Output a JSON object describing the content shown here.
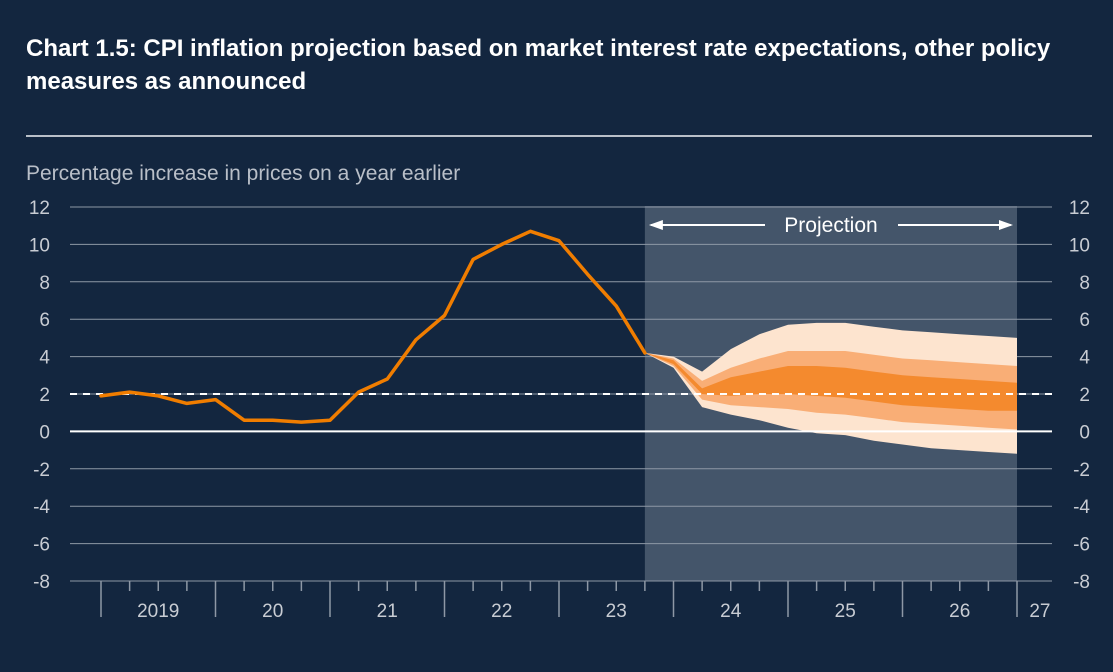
{
  "title": "Chart 1.5: CPI inflation projection based on market interest rate expectations, other policy measures as announced",
  "chart_data": {
    "type": "line",
    "title": "Chart 1.5: CPI inflation projection based on market interest rate expectations, other policy measures as announced",
    "ylabel": "Percentage increase in prices on a year earlier",
    "ylim": [
      -8,
      12
    ],
    "yticks": [
      12,
      10,
      8,
      6,
      4,
      2,
      0,
      -2,
      -4,
      -6,
      -8
    ],
    "ytick_labels": [
      "12",
      "10",
      "8",
      "6",
      "4",
      "2",
      "0",
      "-2",
      "-4",
      "-6",
      "-8"
    ],
    "xlim": [
      2019.0,
      2027.0
    ],
    "x_labels": [
      {
        "label": "2019",
        "x": 2019.5
      },
      {
        "label": "20",
        "x": 2020.5
      },
      {
        "label": "21",
        "x": 2021.5
      },
      {
        "label": "22",
        "x": 2022.5
      },
      {
        "label": "23",
        "x": 2023.5
      },
      {
        "label": "24",
        "x": 2024.5
      },
      {
        "label": "25",
        "x": 2025.5
      },
      {
        "label": "26",
        "x": 2026.5
      },
      {
        "label": "27",
        "x": 2027.2
      }
    ],
    "grid": true,
    "target_line": 2,
    "projection": {
      "label": "Projection",
      "start": 2023.75,
      "end": 2027.0
    },
    "series": [
      {
        "type": "line",
        "color": "#f07d00",
        "x": [
          2019.0,
          2019.25,
          2019.5,
          2019.75,
          2020.0,
          2020.25,
          2020.5,
          2020.75,
          2021.0,
          2021.25,
          2021.5,
          2021.75,
          2022.0,
          2022.25,
          2022.5,
          2022.75,
          2023.0,
          2023.25,
          2023.5,
          2023.75
        ],
        "y": [
          1.9,
          2.1,
          1.9,
          1.5,
          1.7,
          0.6,
          0.6,
          0.5,
          0.6,
          2.1,
          2.8,
          4.9,
          6.2,
          9.2,
          10.0,
          10.7,
          10.2,
          8.4,
          6.7,
          4.2
        ]
      }
    ],
    "fan": {
      "x": [
        2023.75,
        2024.0,
        2024.25,
        2024.5,
        2024.75,
        2025.0,
        2025.25,
        2025.5,
        2025.75,
        2026.0,
        2026.25,
        2026.5,
        2026.75,
        2027.0
      ],
      "bands": [
        {
          "color": "#fde4cf",
          "upper": [
            4.2,
            4.0,
            3.2,
            4.4,
            5.2,
            5.7,
            5.8,
            5.8,
            5.6,
            5.4,
            5.3,
            5.2,
            5.1,
            5.0
          ],
          "lower": [
            4.2,
            3.4,
            1.3,
            0.9,
            0.6,
            0.2,
            -0.1,
            -0.2,
            -0.5,
            -0.7,
            -0.9,
            -1.0,
            -1.1,
            -1.2
          ]
        },
        {
          "color": "#f9ae76",
          "upper": [
            4.2,
            3.9,
            2.7,
            3.4,
            3.9,
            4.3,
            4.3,
            4.3,
            4.1,
            3.9,
            3.8,
            3.7,
            3.6,
            3.5
          ],
          "lower": [
            4.2,
            3.5,
            1.7,
            1.4,
            1.3,
            1.2,
            1.0,
            0.9,
            0.7,
            0.5,
            0.4,
            0.3,
            0.2,
            0.1
          ]
        },
        {
          "color": "#f48a2e",
          "upper": [
            4.2,
            3.8,
            2.3,
            2.9,
            3.2,
            3.5,
            3.5,
            3.4,
            3.2,
            3.0,
            2.9,
            2.8,
            2.7,
            2.6
          ],
          "lower": [
            4.2,
            3.6,
            2.0,
            1.9,
            2.0,
            2.0,
            1.9,
            1.8,
            1.6,
            1.4,
            1.3,
            1.2,
            1.1,
            1.1
          ]
        }
      ]
    }
  },
  "colors": {
    "background": "#13263f",
    "projection_shade": "#44556a",
    "line": "#f07d00",
    "grid": "#8e98a6",
    "text": "#c8ccd3"
  }
}
